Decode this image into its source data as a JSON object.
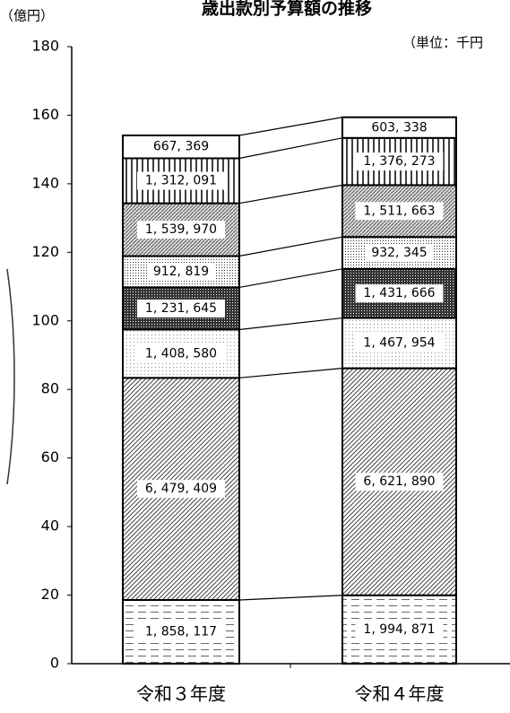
{
  "chart_data": {
    "type": "stacked-bar",
    "title": "歳出款別予算額の推移",
    "subtitle": "（単位：千円",
    "y_label": "（億円）",
    "categories": [
      "令和３年度",
      "令和４年度"
    ],
    "ylim": [
      0,
      180
    ],
    "yticks": [
      0,
      20,
      40,
      60,
      80,
      100,
      120,
      140,
      160,
      180
    ],
    "series": [
      {
        "pattern": "hdash",
        "values": [
          18.58117,
          19.94871
        ],
        "value_labels": [
          "1, 858, 117",
          "1, 994, 871"
        ]
      },
      {
        "pattern": "diag",
        "values": [
          64.79409,
          66.2189
        ],
        "value_labels": [
          "6, 479, 409",
          "6, 621, 890"
        ]
      },
      {
        "pattern": "lightdots",
        "values": [
          14.0858,
          14.67954
        ],
        "value_labels": [
          "1, 408, 580",
          "1, 467, 954"
        ]
      },
      {
        "pattern": "darkdots",
        "values": [
          12.31645,
          14.31666
        ],
        "value_labels": [
          "1, 231, 645",
          "1, 431, 666"
        ]
      },
      {
        "pattern": "dots",
        "values": [
          9.12819,
          9.32345
        ],
        "value_labels": [
          "912, 819",
          "932, 345"
        ]
      },
      {
        "pattern": "cross",
        "values": [
          15.3997,
          15.11663
        ],
        "value_labels": [
          "1, 539, 970",
          "1, 511, 663"
        ]
      },
      {
        "pattern": "vert",
        "values": [
          13.12091,
          13.76273
        ],
        "value_labels": [
          "1, 312, 091",
          "1, 376, 273"
        ]
      },
      {
        "pattern": "white",
        "values": [
          6.67369,
          6.03338
        ],
        "value_labels": [
          "667, 369",
          "603, 338"
        ]
      }
    ]
  }
}
